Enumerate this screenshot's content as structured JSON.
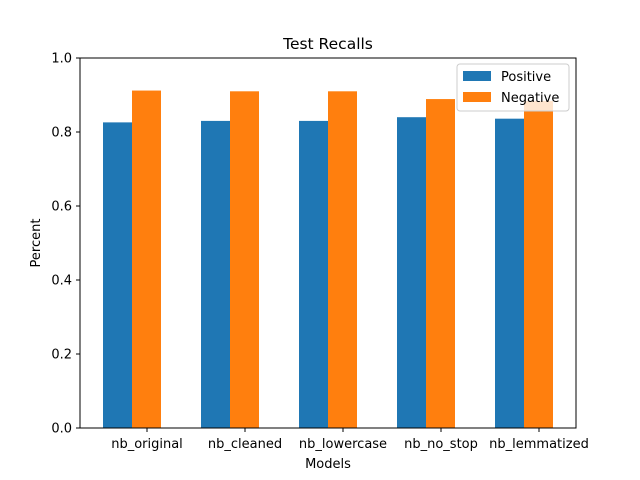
{
  "chart_data": {
    "type": "bar",
    "title": "Test Recalls",
    "xlabel": "Models",
    "ylabel": "Percent",
    "categories": [
      "nb_original",
      "nb_cleaned",
      "nb_lowercase",
      "nb_no_stop",
      "nb_lemmatized"
    ],
    "series": [
      {
        "name": "Positive",
        "color": "#1f77b4",
        "values": [
          0.826,
          0.83,
          0.83,
          0.84,
          0.836
        ]
      },
      {
        "name": "Negative",
        "color": "#ff7f0e",
        "values": [
          0.912,
          0.91,
          0.91,
          0.889,
          0.884
        ]
      }
    ],
    "ylim": [
      0,
      1.0
    ],
    "yticks": [
      "0.0",
      "0.2",
      "0.4",
      "0.6",
      "0.8",
      "1.0"
    ],
    "grid": false,
    "legend_position": "top-right"
  }
}
